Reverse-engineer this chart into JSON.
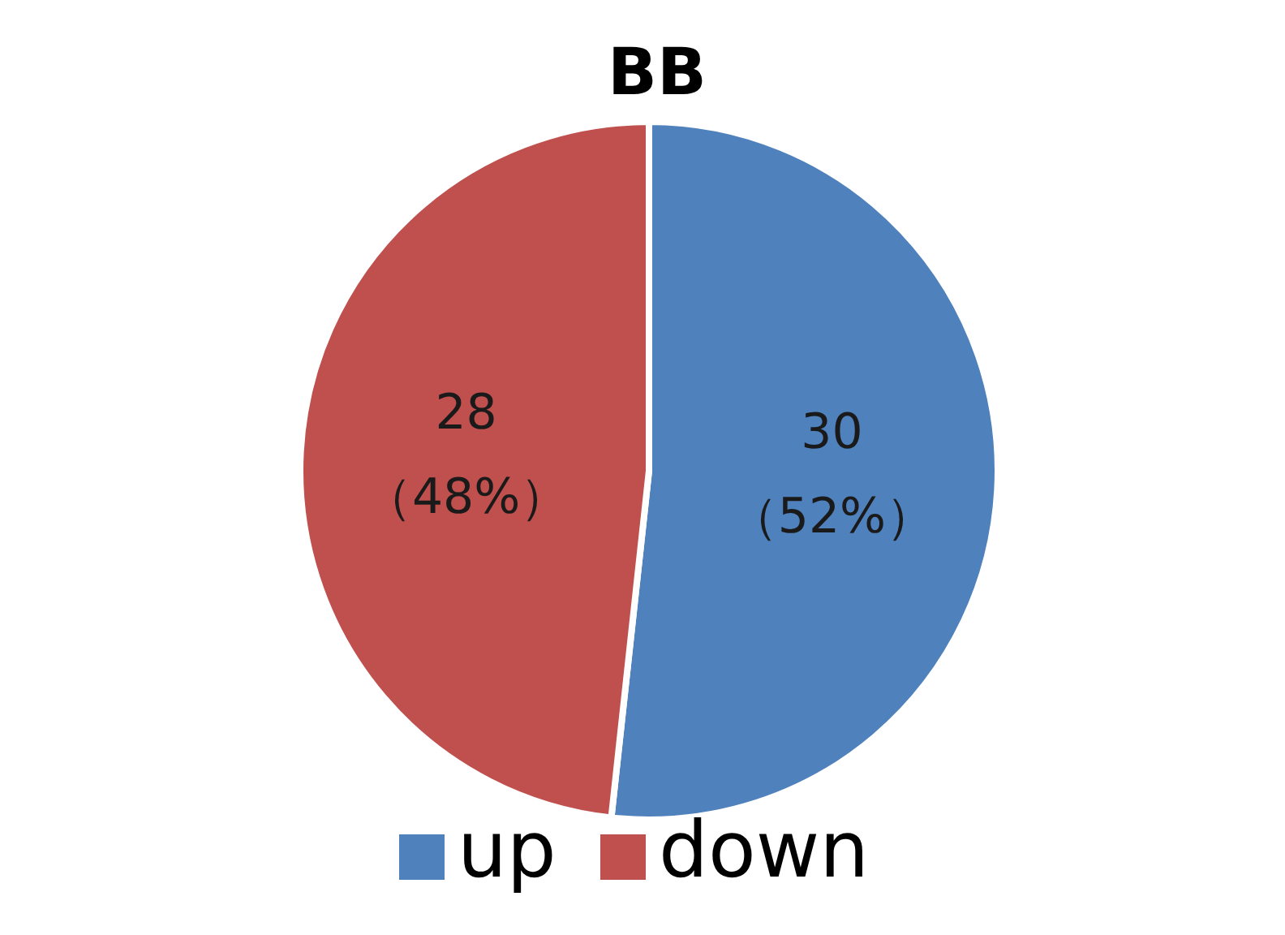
{
  "chart_data": {
    "type": "pie",
    "title": "BB",
    "categories": [
      "up",
      "down"
    ],
    "values": [
      30,
      28
    ],
    "colors": [
      "#4f81bd",
      "#c0504d"
    ],
    "value_labels": [
      "30\n（52%）",
      "28\n（48%）"
    ],
    "legend": "bottom"
  }
}
